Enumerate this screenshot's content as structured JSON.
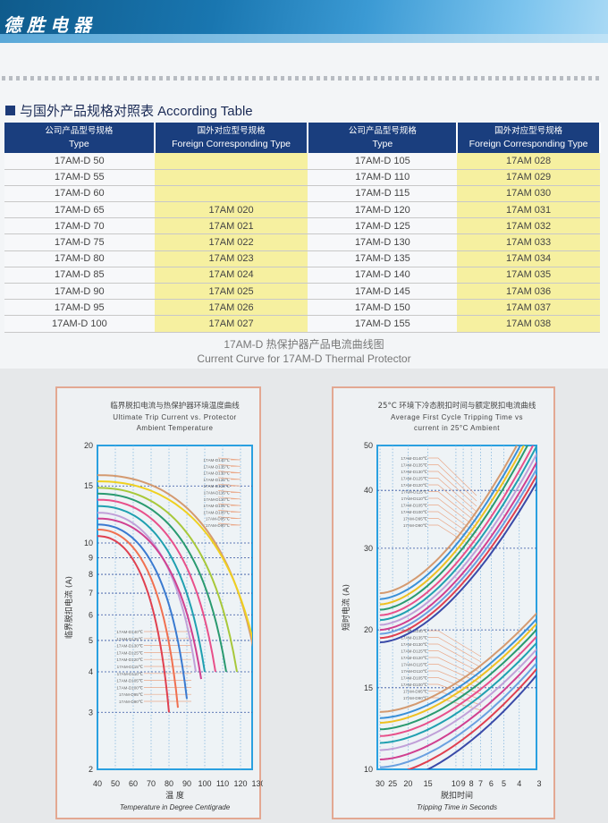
{
  "header": {
    "brand": "德胜电器"
  },
  "section": {
    "title": "与国外产品规格对照表 According Table"
  },
  "table": {
    "headers": [
      {
        "cn": "公司产品型号规格",
        "en": "Type"
      },
      {
        "cn": "国外对应型号规格",
        "en": "Foreign Corresponding Type"
      },
      {
        "cn": "公司产品型号规格",
        "en": "Type"
      },
      {
        "cn": "国外对应型号规格",
        "en": "Foreign Corresponding Type"
      }
    ],
    "rows": [
      [
        "17AM-D 50",
        "",
        "17AM-D 105",
        "17AM 028"
      ],
      [
        "17AM-D 55",
        "",
        "17AM-D 110",
        "17AM 029"
      ],
      [
        "17AM-D 60",
        "",
        "17AM-D 115",
        "17AM 030"
      ],
      [
        "17AM-D 65",
        "17AM 020",
        "17AM-D 120",
        "17AM 031"
      ],
      [
        "17AM-D 70",
        "17AM 021",
        "17AM-D 125",
        "17AM 032"
      ],
      [
        "17AM-D 75",
        "17AM 022",
        "17AM-D 130",
        "17AM 033"
      ],
      [
        "17AM-D 80",
        "17AM 023",
        "17AM-D 135",
        "17AM 034"
      ],
      [
        "17AM-D 85",
        "17AM 024",
        "17AM-D 140",
        "17AM 035"
      ],
      [
        "17AM-D 90",
        "17AM 025",
        "17AM-D 145",
        "17AM 036"
      ],
      [
        "17AM-D 95",
        "17AM 026",
        "17AM-D 150",
        "17AM 037"
      ],
      [
        "17AM-D 100",
        "17AM 027",
        "17AM-D 155",
        "17AM 038"
      ]
    ]
  },
  "caption": {
    "cn": "17AM-D 热保护器产品电流曲线图",
    "en": "Current Curve for 17AM-D Thermal Protector"
  },
  "chart_data": [
    {
      "type": "line",
      "title_cn": "临界脱扣电流与热保护器环境温度曲线",
      "title_en1": "Ultimate Trip Current vs. Protector",
      "title_en2": "Ambient Temperature",
      "ylabel": "临界脱扣电流 (A)",
      "xlabel_cn": "温 度",
      "xlabel_en": "Temperature in Degree Centigrade",
      "xlim": [
        40,
        130
      ],
      "ylim": [
        2,
        20
      ],
      "yscale": "log",
      "xticks": [
        "40",
        "50",
        "60",
        "70",
        "80",
        "90",
        "100",
        "110",
        "120",
        "130"
      ],
      "yticks": [
        "20",
        "15",
        "10",
        "9",
        "8",
        "7",
        "6",
        "5",
        "4",
        "3",
        "2"
      ],
      "series": [
        {
          "name": "17AM-D140℃",
          "color": "#d49a70",
          "start": [
            40,
            16.2
          ],
          "end": [
            128,
            4.5
          ]
        },
        {
          "name": "17AM-D135℃",
          "color": "#efd020",
          "start": [
            40,
            15.5
          ],
          "end": [
            127,
            5
          ]
        },
        {
          "name": "17AM-D130℃",
          "color": "#a8c83a",
          "start": [
            40,
            14.8
          ],
          "end": [
            118,
            4
          ]
        },
        {
          "name": "17AM-D125℃",
          "color": "#2a9a70",
          "start": [
            40,
            14.2
          ],
          "end": [
            112,
            4
          ]
        },
        {
          "name": "17AM-D120℃",
          "color": "#e8508a",
          "start": [
            40,
            13.6
          ],
          "end": [
            106,
            4
          ]
        },
        {
          "name": "17AM-D115℃",
          "color": "#20a0b0",
          "start": [
            40,
            13
          ],
          "end": [
            100,
            4
          ]
        },
        {
          "name": "17AM-D110℃",
          "color": "#c0a0d8",
          "start": [
            40,
            12.4
          ],
          "end": [
            95,
            4
          ]
        },
        {
          "name": "17AM-D105℃",
          "color": "#d04090",
          "start": [
            40,
            11.9
          ],
          "end": [
            98,
            3.8
          ]
        },
        {
          "name": "17AM-D100℃",
          "color": "#3a7ad0",
          "start": [
            40,
            11.4
          ],
          "end": [
            90,
            3.3
          ]
        },
        {
          "name": "17AM-D95℃",
          "color": "#f07050",
          "start": [
            40,
            11
          ],
          "end": [
            85,
            3.1
          ]
        },
        {
          "name": "17AM-D90℃",
          "color": "#e04050",
          "start": [
            40,
            10.5
          ],
          "end": [
            80,
            3
          ]
        }
      ]
    },
    {
      "type": "line",
      "title_cn": "25°C 环境下冷态脱扣时间与额定脱扣电流曲线",
      "title_en1": "Average First Cycle Tripping Time vs",
      "title_en2": "current in 25°C Ambient",
      "ylabel": "短时电流 (A)",
      "xlabel_cn": "脱扣时间",
      "xlabel_en": "Tripping Time in Seconds",
      "xlim": [
        30,
        3
      ],
      "ylim": [
        10,
        50
      ],
      "xscale": "log",
      "yscale": "log",
      "xticks": [
        "30",
        "25",
        "20",
        "15",
        "10",
        "9",
        "8",
        "7",
        "6",
        "5",
        "4",
        "3"
      ],
      "yticks": [
        "50",
        "40",
        "30",
        "20",
        "15",
        "10"
      ],
      "series": [
        {
          "name": "17AM-D140℃",
          "color": "#d49a70",
          "upper": [
            24,
            62
          ],
          "lower": [
            13.3,
            22
          ]
        },
        {
          "name": "17AM-D135℃",
          "color": "#3a90d8",
          "upper": [
            23.3,
            60
          ],
          "lower": [
            12.9,
            21.4
          ]
        },
        {
          "name": "17AM-D130℃",
          "color": "#efc020",
          "upper": [
            22.7,
            58
          ],
          "lower": [
            12.6,
            20.9
          ]
        },
        {
          "name": "17AM-D125℃",
          "color": "#2a9a70",
          "upper": [
            22.1,
            56
          ],
          "lower": [
            12.2,
            20.3
          ]
        },
        {
          "name": "17AM-D120℃",
          "color": "#e8508a",
          "upper": [
            21.5,
            53
          ],
          "lower": [
            11.8,
            19.6
          ]
        },
        {
          "name": "17AM-D115℃",
          "color": "#20a0b0",
          "upper": [
            21,
            51
          ],
          "lower": [
            11.4,
            19
          ]
        },
        {
          "name": "17AM-D110℃",
          "color": "#c0a0d8",
          "upper": [
            20.5,
            49
          ],
          "lower": [
            11,
            18.4
          ]
        },
        {
          "name": "17AM-D105℃",
          "color": "#d04090",
          "upper": [
            20,
            47
          ],
          "lower": [
            10.5,
            17.8
          ]
        },
        {
          "name": "17AM-D100℃",
          "color": "#6aa0e0",
          "upper": [
            19.6,
            45.5
          ],
          "lower": [
            10.1,
            17.2
          ]
        },
        {
          "name": "17AM-D95℃",
          "color": "#e04050",
          "upper": [
            19.2,
            44
          ],
          "lower": [
            9.7,
            16.7
          ]
        },
        {
          "name": "17AM-D90℃",
          "color": "#3a4aa8",
          "upper": [
            18.8,
            42.5
          ],
          "lower": [
            9.3,
            16.2
          ]
        }
      ]
    }
  ]
}
